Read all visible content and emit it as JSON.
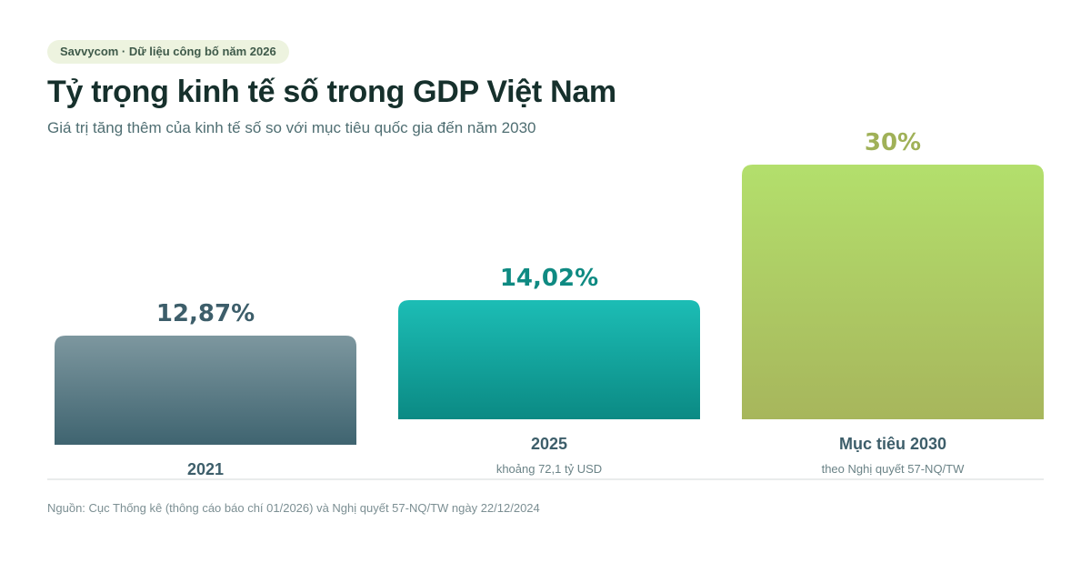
{
  "badge": "Savvycom · Dữ liệu công bố năm 2026",
  "header": {
    "title": "Tỷ trọng kinh tế số trong GDP Việt Nam",
    "subtitle": "Giá trị tăng thêm của kinh tế số so với mục tiêu quốc gia đến năm 2030"
  },
  "chart_data": {
    "type": "bar",
    "title": "Tỷ trọng kinh tế số trong GDP Việt Nam",
    "subtitle": "Giá trị tăng thêm của kinh tế số so với mục tiêu quốc gia đến năm 2030",
    "categories": [
      "2021",
      "2025",
      "Mục tiêu 2030"
    ],
    "values": [
      12.87,
      14.02,
      30
    ],
    "value_labels": [
      "12,87%",
      "14,02%",
      "30%"
    ],
    "notes": [
      "",
      "khoảng 72,1 tỷ USD",
      "theo Nghị quyết 57-NQ/TW"
    ],
    "colors": [
      {
        "top": "#7d979f",
        "bottom": "#3f6470",
        "label": "#3d5e6a"
      },
      {
        "top": "#1cbdb5",
        "bottom": "#0b8a84",
        "label": "#0f8a82"
      },
      {
        "top": "#b3df6c",
        "bottom": "#a7b65c",
        "label": "#a0b158"
      }
    ],
    "grid": false,
    "legend": "none"
  },
  "source": "Nguồn: Cục Thống kê (thông cáo báo chí 01/2026) và Nghị quyết 57-NQ/TW ngày 22/12/2024"
}
